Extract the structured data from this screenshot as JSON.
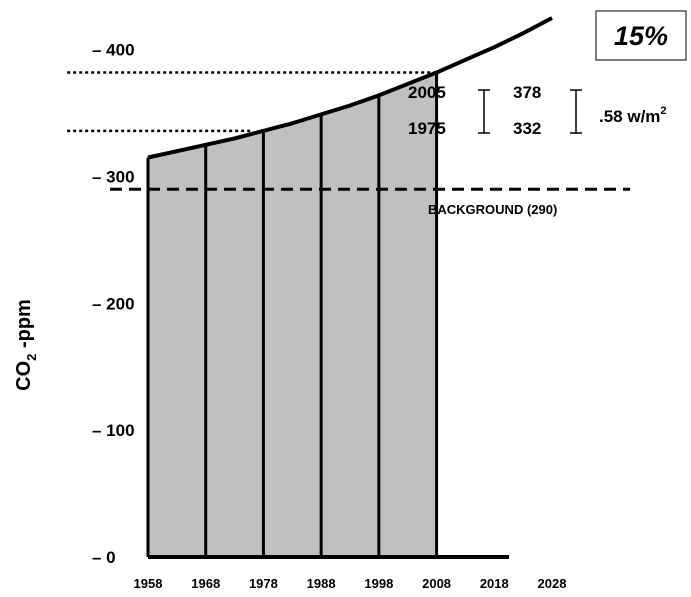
{
  "chart_data": {
    "type": "area",
    "title": "",
    "xlabel": "",
    "ylabel_main": "CO",
    "ylabel_sub": "2",
    "ylabel_rest": " -ppm",
    "ylim": [
      0,
      425
    ],
    "xlim": [
      1958,
      2028
    ],
    "y_ticks": [
      {
        "value": 0,
        "label": "– 0"
      },
      {
        "value": 100,
        "label": "– 100"
      },
      {
        "value": 200,
        "label": "– 200"
      },
      {
        "value": 300,
        "label": "– 300"
      },
      {
        "value": 400,
        "label": "– 400"
      }
    ],
    "x_ticks": [
      {
        "value": 1958,
        "label": "1958"
      },
      {
        "value": 1968,
        "label": "1968"
      },
      {
        "value": 1978,
        "label": "1978"
      },
      {
        "value": 1988,
        "label": "1988"
      },
      {
        "value": 1998,
        "label": "1998"
      },
      {
        "value": 2008,
        "label": "2008"
      },
      {
        "value": 2018,
        "label": "2018"
      },
      {
        "value": 2028,
        "label": "2028"
      }
    ],
    "curve": {
      "x": [
        1958,
        1963,
        1968,
        1973,
        1978,
        1983,
        1988,
        1993,
        1998,
        2003,
        2008,
        2013,
        2018,
        2023,
        2028
      ],
      "y": [
        315,
        320,
        325,
        330,
        336,
        342,
        349,
        356,
        364,
        373,
        382,
        392,
        402,
        413,
        425
      ]
    },
    "shaded_end": 2008,
    "dividers": [
      1968,
      1978,
      1988,
      1998
    ],
    "background": {
      "value": 290,
      "label": "BACKGROUND (290)"
    },
    "reference_lines": [
      {
        "value": 382,
        "from_x": 1944,
        "to_x": 2008
      },
      {
        "value": 336,
        "from_x": 1944,
        "to_x": 1976
      }
    ],
    "annotations": {
      "year_2005": "2005",
      "year_1975": "1975",
      "value_378": "378",
      "value_332": "332",
      "forcing": ".58 w/m",
      "forcing_sup": "2",
      "percent": "15%"
    },
    "colors": {
      "fill": "#c0c0c0",
      "line": "#000000",
      "background": "#ffffff"
    }
  }
}
